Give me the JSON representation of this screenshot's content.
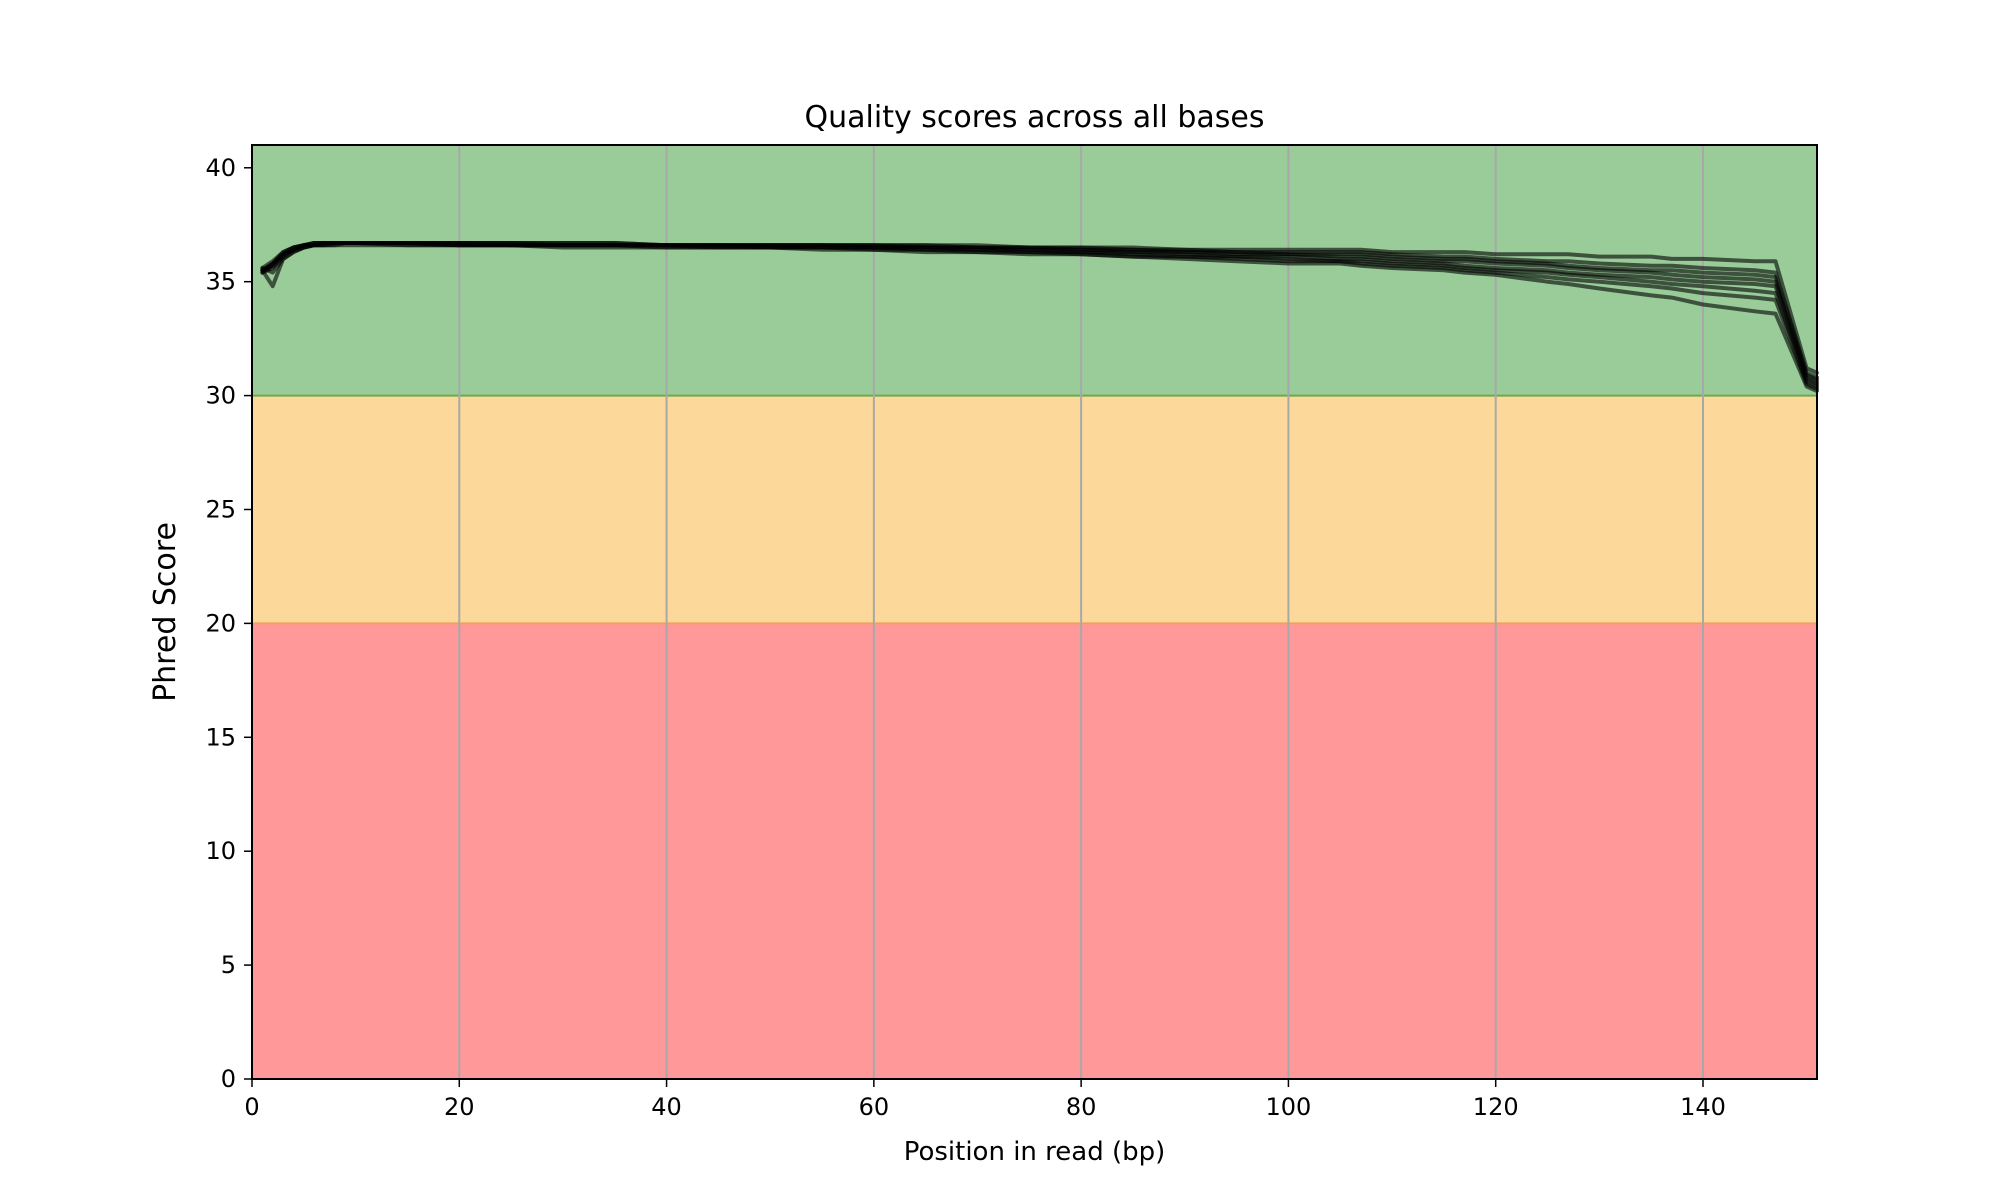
{
  "chart_data": {
    "type": "line",
    "title": "Quality scores across all bases",
    "xlabel": "Position in read (bp)",
    "ylabel": "Phred Score",
    "xlim": [
      0,
      151
    ],
    "ylim": [
      0,
      41
    ],
    "xticks": [
      0,
      20,
      40,
      60,
      80,
      100,
      120,
      140
    ],
    "yticks": [
      0,
      5,
      10,
      15,
      20,
      25,
      30,
      35,
      40
    ],
    "grid": "vertical",
    "bands": [
      {
        "from": 0,
        "to": 20,
        "color": "#ff9999"
      },
      {
        "from": 20,
        "to": 30,
        "color": "#fcd99a"
      },
      {
        "from": 30,
        "to": 41,
        "color": "#9acc9a"
      }
    ],
    "band_edge_colors": {
      "20": "#f0a060",
      "30": "#6ea84f"
    },
    "line_color": "#000000",
    "line_opacity": 0.6,
    "x": [
      1,
      2,
      3,
      4,
      5,
      6,
      7,
      8,
      9,
      10,
      15,
      20,
      25,
      30,
      35,
      40,
      45,
      50,
      55,
      60,
      65,
      70,
      75,
      80,
      85,
      90,
      95,
      100,
      105,
      107,
      110,
      115,
      117,
      120,
      125,
      127,
      130,
      135,
      137,
      140,
      145,
      147,
      150,
      151
    ],
    "series": [
      {
        "values": [
          35.6,
          35.9,
          36.3,
          36.5,
          36.6,
          36.7,
          36.7,
          36.7,
          36.7,
          36.7,
          36.7,
          36.7,
          36.7,
          36.7,
          36.7,
          36.6,
          36.6,
          36.6,
          36.6,
          36.6,
          36.6,
          36.6,
          36.5,
          36.5,
          36.5,
          36.4,
          36.4,
          36.4,
          36.4,
          36.4,
          36.3,
          36.3,
          36.3,
          36.2,
          36.2,
          36.2,
          36.1,
          36.1,
          36.0,
          36.0,
          35.9,
          35.9,
          31.2,
          31.0
        ]
      },
      {
        "values": [
          35.5,
          35.8,
          36.2,
          36.5,
          36.6,
          36.7,
          36.7,
          36.7,
          36.7,
          36.7,
          36.7,
          36.7,
          36.7,
          36.7,
          36.7,
          36.6,
          36.6,
          36.6,
          36.6,
          36.6,
          36.6,
          36.5,
          36.5,
          36.5,
          36.4,
          36.4,
          36.3,
          36.3,
          36.3,
          36.3,
          36.2,
          36.1,
          36.1,
          36.0,
          35.9,
          35.9,
          35.8,
          35.7,
          35.7,
          35.6,
          35.5,
          35.4,
          31.0,
          30.8
        ]
      },
      {
        "values": [
          35.4,
          35.7,
          36.2,
          36.4,
          36.6,
          36.6,
          36.7,
          36.7,
          36.7,
          36.7,
          36.7,
          36.7,
          36.7,
          36.6,
          36.6,
          36.6,
          36.6,
          36.6,
          36.6,
          36.6,
          36.5,
          36.5,
          36.5,
          36.4,
          36.4,
          36.3,
          36.3,
          36.2,
          36.2,
          36.2,
          36.1,
          36.0,
          36.0,
          35.9,
          35.8,
          35.7,
          35.6,
          35.5,
          35.5,
          35.4,
          35.3,
          35.2,
          30.9,
          30.7
        ]
      },
      {
        "values": [
          35.5,
          35.8,
          36.3,
          36.5,
          36.6,
          36.7,
          36.7,
          36.7,
          36.7,
          36.7,
          36.7,
          36.7,
          36.6,
          36.6,
          36.6,
          36.6,
          36.6,
          36.6,
          36.6,
          36.5,
          36.5,
          36.5,
          36.4,
          36.4,
          36.3,
          36.3,
          36.2,
          36.2,
          36.1,
          36.1,
          36.0,
          35.9,
          35.9,
          35.8,
          35.7,
          35.6,
          35.5,
          35.4,
          35.3,
          35.2,
          35.1,
          35.0,
          30.8,
          30.6
        ]
      },
      {
        "values": [
          35.4,
          35.6,
          36.1,
          36.4,
          36.5,
          36.6,
          36.6,
          36.7,
          36.7,
          36.7,
          36.7,
          36.6,
          36.6,
          36.6,
          36.6,
          36.6,
          36.6,
          36.5,
          36.5,
          36.5,
          36.5,
          36.4,
          36.4,
          36.3,
          36.3,
          36.2,
          36.1,
          36.1,
          36.0,
          36.0,
          35.9,
          35.8,
          35.7,
          35.6,
          35.5,
          35.4,
          35.3,
          35.2,
          35.1,
          35.0,
          34.9,
          34.8,
          30.7,
          30.5
        ]
      },
      {
        "values": [
          35.5,
          35.7,
          36.2,
          36.4,
          36.6,
          36.6,
          36.7,
          36.7,
          36.7,
          36.7,
          36.7,
          36.6,
          36.6,
          36.6,
          36.6,
          36.6,
          36.5,
          36.5,
          36.5,
          36.5,
          36.4,
          36.4,
          36.3,
          36.3,
          36.2,
          36.1,
          36.1,
          36.0,
          35.9,
          35.9,
          35.8,
          35.7,
          35.6,
          35.5,
          35.4,
          35.3,
          35.2,
          35.0,
          34.9,
          34.8,
          34.6,
          34.5,
          30.6,
          30.4
        ]
      },
      {
        "values": [
          35.6,
          35.4,
          36.0,
          36.3,
          36.5,
          36.6,
          36.6,
          36.6,
          36.7,
          36.7,
          36.6,
          36.6,
          36.6,
          36.6,
          36.6,
          36.5,
          36.5,
          36.5,
          36.5,
          36.4,
          36.4,
          36.3,
          36.3,
          36.2,
          36.1,
          36.1,
          36.0,
          35.9,
          35.9,
          35.8,
          35.7,
          35.6,
          35.5,
          35.4,
          35.2,
          35.1,
          35.0,
          34.8,
          34.7,
          34.5,
          34.3,
          34.2,
          30.5,
          30.3
        ]
      },
      {
        "values": [
          35.5,
          34.8,
          36.0,
          36.3,
          36.5,
          36.6,
          36.6,
          36.6,
          36.6,
          36.6,
          36.6,
          36.6,
          36.6,
          36.5,
          36.5,
          36.5,
          36.5,
          36.5,
          36.4,
          36.4,
          36.3,
          36.3,
          36.2,
          36.2,
          36.1,
          36.0,
          35.9,
          35.8,
          35.8,
          35.7,
          35.6,
          35.5,
          35.4,
          35.3,
          35.0,
          34.9,
          34.7,
          34.4,
          34.3,
          34.0,
          33.7,
          33.6,
          30.4,
          30.2
        ]
      }
    ]
  }
}
